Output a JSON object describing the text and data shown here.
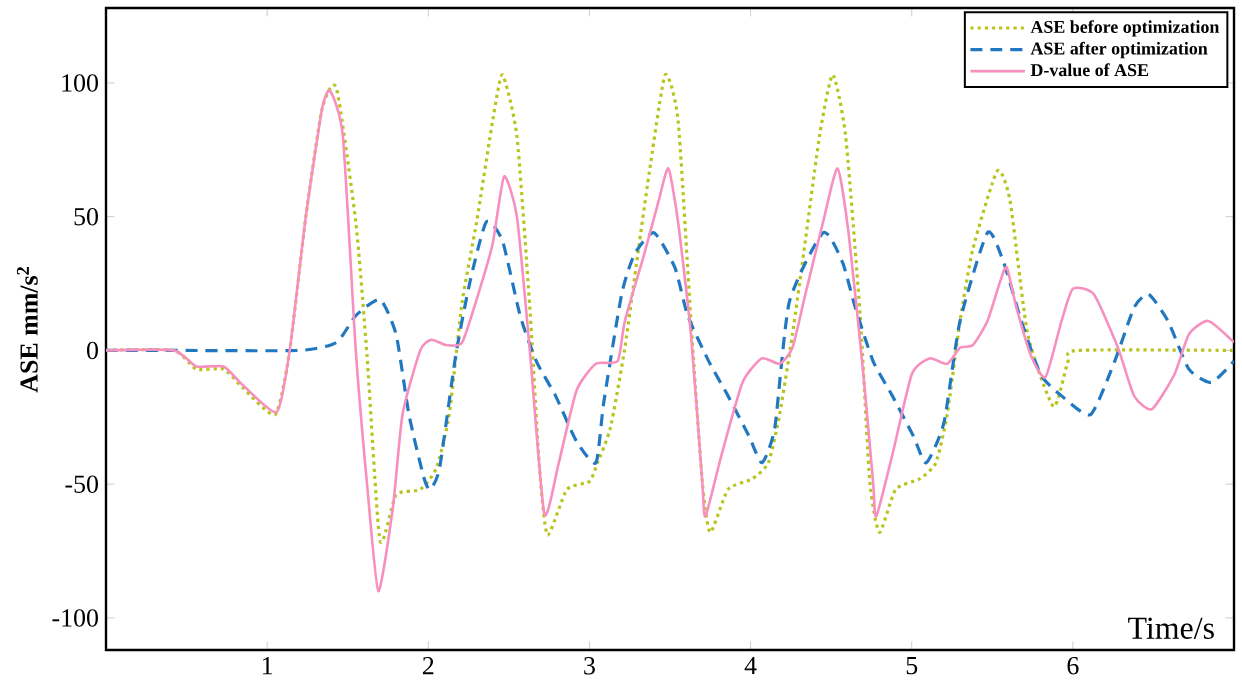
{
  "chart_data": {
    "type": "line",
    "xlabel": "Time/s",
    "ylabel": "**ASE mm/s$^{2}$**",
    "xlim": [
      0,
      7
    ],
    "ylim": [
      -112,
      128
    ],
    "xticks": [
      1,
      2,
      3,
      4,
      5,
      6
    ],
    "yticks": [
      -100,
      -50,
      0,
      50,
      100
    ],
    "grid": false,
    "legend": "top right",
    "marker": "none",
    "series": [
      {
        "name": "**ASE before optimization**",
        "color": "#b8c41c",
        "line_style": "dotted",
        "x": [
          0,
          0.42,
          0.56,
          0.73,
          0.85,
          1.05,
          1.14,
          1.24,
          1.34,
          1.43,
          1.55,
          1.62,
          1.7,
          1.8,
          1.95,
          2.05,
          2.13,
          2.21,
          2.3,
          2.4,
          2.46,
          2.55,
          2.63,
          2.69,
          2.74,
          2.86,
          3.0,
          3.05,
          3.13,
          3.22,
          3.3,
          3.38,
          3.47,
          3.55,
          3.63,
          3.7,
          3.75,
          3.86,
          4.01,
          4.11,
          4.18,
          4.26,
          4.34,
          4.43,
          4.51,
          4.59,
          4.68,
          4.74,
          4.8,
          4.9,
          5.05,
          5.15,
          5.22,
          5.3,
          5.38,
          5.53,
          5.61,
          5.72,
          5.88,
          5.97,
          6.03,
          7.0
        ],
        "values": [
          0,
          0,
          -7,
          -7,
          -14,
          -24,
          0,
          50,
          90,
          98,
          48,
          -2,
          -71,
          -54,
          -52,
          -44,
          -24,
          18,
          48,
          86,
          103,
          80,
          16,
          -44,
          -69,
          -52,
          -49,
          -42,
          -29,
          1,
          36,
          70,
          103,
          86,
          11,
          -49,
          -68,
          -52,
          -48,
          -42,
          -24,
          6,
          41,
          81,
          103,
          80,
          13,
          -49,
          -68,
          -52,
          -48,
          -42,
          -24,
          11,
          38,
          67,
          56,
          6,
          -21,
          -4,
          0,
          0
        ]
      },
      {
        "name": "**ASE after optimization**",
        "color": "#2178c0",
        "line_style": "dashed",
        "x": [
          0,
          0.42,
          1.2,
          1.43,
          1.55,
          1.7,
          1.8,
          1.88,
          1.97,
          2.01,
          2.07,
          2.17,
          2.26,
          2.36,
          2.46,
          2.57,
          2.67,
          2.79,
          2.92,
          3.04,
          3.09,
          3.2,
          3.28,
          3.4,
          3.53,
          3.61,
          3.74,
          3.86,
          3.99,
          4.07,
          4.15,
          4.24,
          4.45,
          4.57,
          4.65,
          4.76,
          4.88,
          5.01,
          5.09,
          5.2,
          5.3,
          5.47,
          5.57,
          5.68,
          5.8,
          5.93,
          6.11,
          6.26,
          6.38,
          6.47,
          6.59,
          6.72,
          6.86,
          7.0
        ],
        "values": [
          0,
          0,
          0,
          3,
          13,
          19,
          6,
          -24,
          -47,
          -52,
          -44,
          -2,
          26,
          48,
          41,
          13,
          -4,
          -17,
          -34,
          -42,
          -19,
          21,
          36,
          44,
          31,
          13,
          -4,
          -17,
          -32,
          -42,
          -29,
          18,
          44,
          33,
          16,
          -4,
          -17,
          -32,
          -42,
          -27,
          11,
          44,
          33,
          11,
          -9,
          -17,
          -24,
          -4,
          16,
          21,
          11,
          -7,
          -12,
          -4
        ]
      },
      {
        "name": "**D-value of ASE**",
        "color": "#f78fbf",
        "line_style": "solid",
        "x": [
          0,
          0.42,
          0.56,
          0.73,
          0.85,
          1.06,
          1.14,
          1.24,
          1.34,
          1.39,
          1.47,
          1.55,
          1.62,
          1.69,
          1.78,
          1.84,
          1.95,
          2.02,
          2.11,
          2.21,
          2.32,
          2.4,
          2.47,
          2.55,
          2.63,
          2.72,
          2.81,
          2.92,
          3.04,
          3.175,
          3.22,
          3.34,
          3.43,
          3.49,
          3.55,
          3.63,
          3.7,
          3.72,
          3.82,
          3.95,
          4.07,
          4.18,
          4.26,
          4.34,
          4.45,
          4.54,
          4.61,
          4.7,
          4.76,
          4.78,
          4.88,
          5.0,
          5.11,
          5.22,
          5.3,
          5.38,
          5.47,
          5.55,
          5.59,
          5.65,
          5.74,
          5.83,
          5.93,
          6.0,
          6.13,
          6.28,
          6.38,
          6.49,
          6.63,
          6.72,
          6.84,
          7.0
        ],
        "values": [
          0,
          0,
          -6,
          -6,
          -13,
          -23,
          0,
          50,
          90,
          97,
          80,
          0,
          -50,
          -90,
          -59,
          -24,
          0,
          4,
          2,
          3,
          23,
          40,
          65,
          50,
          0,
          -61,
          -42,
          -15,
          -5,
          -4,
          11,
          36,
          56,
          68,
          48,
          6,
          -49,
          -62,
          -39,
          -12,
          -3,
          -5,
          1,
          21,
          48,
          68,
          43,
          -9,
          -49,
          -62,
          -39,
          -9,
          -3,
          -5,
          1,
          2,
          11,
          26,
          31,
          16,
          -2,
          -10,
          11,
          23,
          21,
          1,
          -17,
          -22,
          -9,
          6,
          11,
          3
        ]
      }
    ]
  }
}
